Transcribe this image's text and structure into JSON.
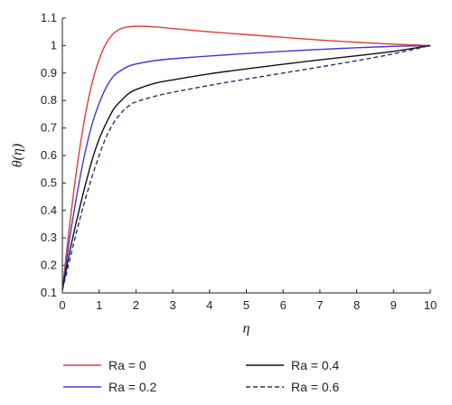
{
  "chart_data": {
    "type": "line",
    "xlabel": "η",
    "ylabel": "θ(η)",
    "xlim": [
      0,
      10
    ],
    "ylim": [
      0.1,
      1.1
    ],
    "x_ticks": [
      "0",
      "1",
      "2",
      "3",
      "4",
      "5",
      "6",
      "7",
      "8",
      "9",
      "10"
    ],
    "y_ticks": [
      "0.1",
      "0.2",
      "0.3",
      "0.4",
      "0.5",
      "0.6",
      "0.7",
      "0.8",
      "0.9",
      "1",
      "1.1"
    ],
    "x_tick_values": [
      0,
      1,
      2,
      3,
      4,
      5,
      6,
      7,
      8,
      9,
      10
    ],
    "y_tick_values": [
      0.1,
      0.2,
      0.3,
      0.4,
      0.5,
      0.6,
      0.7,
      0.8,
      0.9,
      1.0,
      1.1
    ],
    "grid": false,
    "legend_position": "bottom",
    "series": [
      {
        "name": "Ra = 0",
        "color": "#e03c3c",
        "dash": "solid",
        "x": [
          0,
          0.2,
          0.4,
          0.6,
          0.8,
          1.0,
          1.2,
          1.4,
          1.6,
          1.8,
          2.0,
          2.2,
          2.5,
          3,
          4,
          5,
          6,
          7,
          8,
          9,
          10
        ],
        "y": [
          0.11,
          0.35,
          0.56,
          0.73,
          0.86,
          0.95,
          1.01,
          1.045,
          1.062,
          1.068,
          1.07,
          1.07,
          1.068,
          1.062,
          1.05,
          1.04,
          1.03,
          1.02,
          1.012,
          1.005,
          1.0
        ]
      },
      {
        "name": "Ra = 0.2",
        "color": "#3b3bd4",
        "dash": "solid",
        "x": [
          0,
          0.2,
          0.4,
          0.6,
          0.8,
          1.0,
          1.2,
          1.4,
          1.6,
          1.8,
          2.0,
          2.5,
          3,
          4,
          5,
          6,
          7,
          8,
          9,
          10
        ],
        "y": [
          0.11,
          0.3,
          0.46,
          0.6,
          0.71,
          0.79,
          0.85,
          0.89,
          0.91,
          0.925,
          0.933,
          0.945,
          0.952,
          0.962,
          0.971,
          0.979,
          0.986,
          0.992,
          0.997,
          1.0
        ]
      },
      {
        "name": "Ra = 0.4",
        "color": "#111111",
        "dash": "solid",
        "x": [
          0,
          0.2,
          0.4,
          0.6,
          0.8,
          1.0,
          1.2,
          1.4,
          1.6,
          1.8,
          2.0,
          2.5,
          3,
          4,
          5,
          6,
          7,
          8,
          9,
          10
        ],
        "y": [
          0.11,
          0.25,
          0.37,
          0.48,
          0.58,
          0.66,
          0.72,
          0.77,
          0.8,
          0.825,
          0.84,
          0.862,
          0.875,
          0.897,
          0.915,
          0.932,
          0.948,
          0.963,
          0.979,
          1.0
        ]
      },
      {
        "name": "Ra = 0.6",
        "color": "#1e3a6e",
        "dash": "dashed",
        "x": [
          0,
          0.2,
          0.4,
          0.6,
          0.8,
          1.0,
          1.2,
          1.4,
          1.6,
          1.8,
          2.0,
          2.5,
          3,
          4,
          5,
          6,
          7,
          8,
          9,
          10
        ],
        "y": [
          0.11,
          0.22,
          0.33,
          0.43,
          0.52,
          0.6,
          0.67,
          0.72,
          0.755,
          0.78,
          0.795,
          0.815,
          0.83,
          0.855,
          0.878,
          0.9,
          0.922,
          0.945,
          0.97,
          1.0
        ]
      }
    ]
  }
}
